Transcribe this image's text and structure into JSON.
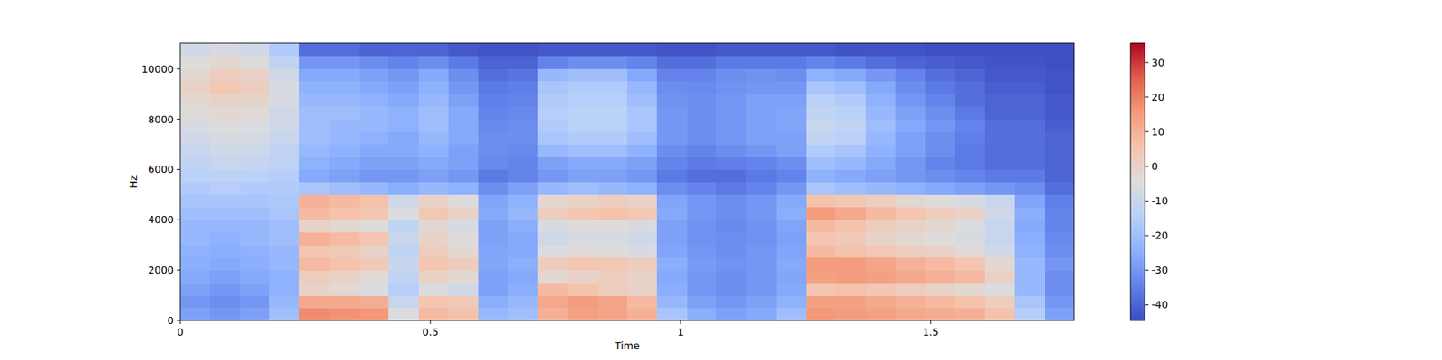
{
  "chart_data": {
    "type": "heatmap",
    "x_label": "Time",
    "y_label": "Hz",
    "xlim": [
      0,
      1.787
    ],
    "ylim": [
      0,
      11025
    ],
    "xticks": [
      0,
      0.5,
      1,
      1.5
    ],
    "yticks": [
      0,
      2000,
      4000,
      6000,
      8000,
      10000
    ],
    "cells": [
      [
        -28,
        -30,
        -28,
        -20,
        18,
        17,
        16,
        -5,
        8,
        6,
        -22,
        -20,
        10,
        14,
        13,
        10,
        -18,
        -25,
        -28,
        -26,
        -20,
        16,
        15,
        14,
        12,
        11,
        10,
        6,
        -15,
        -28
      ],
      [
        -30,
        -32,
        -30,
        -22,
        12,
        12,
        11,
        -10,
        5,
        3,
        -25,
        -22,
        12,
        15,
        13,
        8,
        -22,
        -28,
        -30,
        -28,
        -24,
        14,
        14,
        12,
        10,
        8,
        6,
        2,
        -18,
        -30
      ],
      [
        -28,
        -30,
        -28,
        -24,
        0,
        -2,
        -5,
        -15,
        -5,
        -8,
        -28,
        -25,
        8,
        6,
        2,
        0,
        -25,
        -30,
        -32,
        -30,
        -26,
        5,
        6,
        4,
        2,
        0,
        -2,
        -5,
        -22,
        -32
      ],
      [
        -26,
        -28,
        -26,
        -24,
        2,
        0,
        -3,
        -12,
        0,
        -2,
        -28,
        -26,
        -2,
        0,
        2,
        0,
        -26,
        -30,
        -32,
        -30,
        -27,
        14,
        15,
        14,
        12,
        10,
        8,
        0,
        -22,
        -32
      ],
      [
        -25,
        -26,
        -25,
        -22,
        8,
        6,
        3,
        -10,
        5,
        2,
        -27,
        -25,
        2,
        5,
        4,
        2,
        -25,
        -29,
        -31,
        -30,
        -26,
        15,
        15,
        13,
        10,
        8,
        5,
        -2,
        -22,
        -30
      ],
      [
        -24,
        -25,
        -24,
        -22,
        5,
        3,
        0,
        -12,
        2,
        -2,
        -27,
        -26,
        -5,
        -3,
        -4,
        -6,
        -27,
        -30,
        -32,
        -30,
        -27,
        8,
        6,
        4,
        2,
        0,
        -3,
        -8,
        -24,
        -32
      ],
      [
        -22,
        -24,
        -22,
        -20,
        10,
        8,
        5,
        -10,
        0,
        -4,
        -28,
        -26,
        -8,
        -6,
        -6,
        -8,
        -28,
        -31,
        -32,
        -31,
        -28,
        5,
        3,
        0,
        -2,
        -4,
        -6,
        -10,
        -25,
        -33
      ],
      [
        -22,
        -22,
        -22,
        -20,
        0,
        -2,
        -4,
        -12,
        -2,
        -6,
        -28,
        -25,
        -6,
        -4,
        -4,
        -6,
        -28,
        -31,
        -33,
        -31,
        -27,
        8,
        6,
        2,
        0,
        -2,
        -5,
        -10,
        -26,
        -34
      ],
      [
        -20,
        -20,
        -20,
        -18,
        8,
        6,
        5,
        -5,
        4,
        0,
        -26,
        -22,
        2,
        5,
        6,
        4,
        -26,
        -30,
        -32,
        -30,
        -25,
        15,
        12,
        8,
        5,
        2,
        0,
        -8,
        -25,
        -34
      ],
      [
        -18,
        -18,
        -18,
        -17,
        10,
        8,
        6,
        -8,
        0,
        -4,
        -27,
        -24,
        -2,
        0,
        2,
        0,
        -27,
        -30,
        -32,
        -30,
        -26,
        6,
        4,
        2,
        -2,
        -4,
        -6,
        -10,
        -27,
        -35
      ],
      [
        -16,
        -15,
        -16,
        -16,
        -18,
        -20,
        -22,
        -25,
        -22,
        -24,
        -32,
        -28,
        -22,
        -20,
        -22,
        -24,
        -32,
        -34,
        -36,
        -34,
        -30,
        -18,
        -20,
        -22,
        -24,
        -26,
        -28,
        -30,
        -32,
        -38
      ],
      [
        -14,
        -13,
        -14,
        -15,
        -26,
        -28,
        -30,
        -30,
        -28,
        -30,
        -36,
        -34,
        -30,
        -28,
        -28,
        -30,
        -36,
        -38,
        -38,
        -36,
        -34,
        -24,
        -26,
        -28,
        -30,
        -32,
        -34,
        -36,
        -36,
        -40
      ],
      [
        -12,
        -10,
        -11,
        -13,
        -24,
        -26,
        -28,
        -28,
        -26,
        -28,
        -33,
        -34,
        -28,
        -26,
        -26,
        -28,
        -34,
        -36,
        -35,
        -34,
        -32,
        -20,
        -22,
        -26,
        -30,
        -34,
        -36,
        -38,
        -38,
        -40
      ],
      [
        -10,
        -8,
        -9,
        -12,
        -22,
        -24,
        -26,
        -26,
        -24,
        -28,
        -32,
        -33,
        -22,
        -20,
        -20,
        -24,
        -32,
        -34,
        -32,
        -30,
        -28,
        -16,
        -18,
        -24,
        -28,
        -32,
        -36,
        -38,
        -38,
        -40
      ],
      [
        -8,
        -6,
        -7,
        -10,
        -20,
        -22,
        -24,
        -26,
        -22,
        -26,
        -32,
        -32,
        -18,
        -16,
        -16,
        -20,
        -30,
        -32,
        -30,
        -28,
        -28,
        -12,
        -14,
        -22,
        -28,
        -32,
        -35,
        -38,
        -38,
        -40
      ],
      [
        -6,
        -4,
        -5,
        -8,
        -20,
        -22,
        -22,
        -24,
        -20,
        -26,
        -33,
        -32,
        -16,
        -14,
        -14,
        -18,
        -30,
        -32,
        -30,
        -28,
        -27,
        -10,
        -12,
        -20,
        -26,
        -30,
        -34,
        -38,
        -38,
        -41
      ],
      [
        -4,
        -2,
        -3,
        -8,
        -20,
        -20,
        -22,
        -24,
        -20,
        -26,
        -34,
        -33,
        -15,
        -14,
        -14,
        -18,
        -30,
        -32,
        -30,
        -28,
        -27,
        -12,
        -14,
        -22,
        -28,
        -32,
        -36,
        -40,
        -40,
        -42
      ],
      [
        -2,
        0,
        -1,
        -6,
        -22,
        -22,
        -24,
        -26,
        -22,
        -28,
        -35,
        -34,
        -16,
        -15,
        -15,
        -20,
        -31,
        -32,
        -30,
        -28,
        -28,
        -14,
        -16,
        -24,
        -30,
        -34,
        -38,
        -40,
        -40,
        -42
      ],
      [
        0,
        4,
        2,
        -6,
        -24,
        -24,
        -26,
        -28,
        -24,
        -30,
        -36,
        -35,
        -18,
        -16,
        -16,
        -22,
        -32,
        -33,
        -31,
        -30,
        -30,
        -18,
        -20,
        -26,
        -32,
        -36,
        -38,
        -41,
        -41,
        -43
      ],
      [
        -2,
        2,
        0,
        -8,
        -26,
        -26,
        -28,
        -30,
        -26,
        -32,
        -38,
        -37,
        -22,
        -20,
        -20,
        -26,
        -34,
        -34,
        -32,
        -31,
        -32,
        -24,
        -26,
        -30,
        -34,
        -38,
        -40,
        -42,
        -42,
        -43
      ],
      [
        -4,
        -2,
        -4,
        -12,
        -30,
        -30,
        -32,
        -34,
        -32,
        -36,
        -40,
        -40,
        -34,
        -32,
        -32,
        -34,
        -38,
        -38,
        -36,
        -36,
        -36,
        -34,
        -36,
        -38,
        -40,
        -41,
        -42,
        -43,
        -43,
        -44
      ],
      [
        -8,
        -6,
        -8,
        -16,
        -38,
        -38,
        -40,
        -40,
        -40,
        -42,
        -43,
        -43,
        -42,
        -42,
        -42,
        -42,
        -43,
        -43,
        -42,
        -42,
        -42,
        -42,
        -43,
        -43,
        -43,
        -44,
        -44,
        -44,
        -44,
        -44
      ]
    ],
    "color_range": [
      -44.5,
      35.6
    ],
    "color_ticks": [
      -40,
      -30,
      -20,
      -10,
      0,
      10,
      20,
      30
    ]
  }
}
